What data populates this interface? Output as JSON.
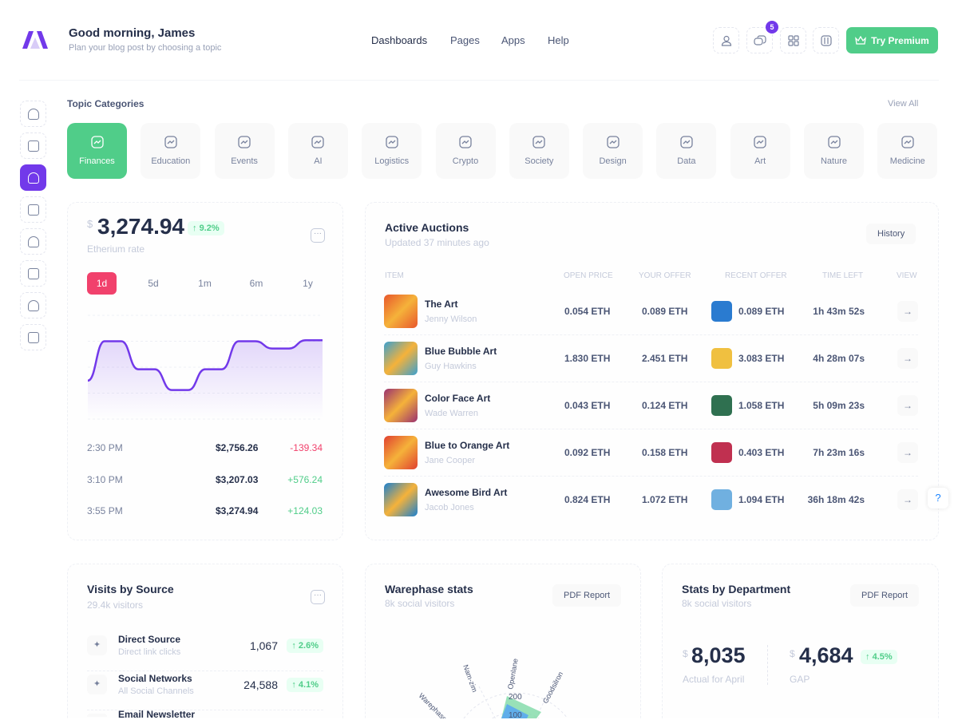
{
  "header": {
    "greeting": "Good morning, James",
    "subtitle": "Plan your blog post by choosing a topic",
    "nav": [
      "Dashboards",
      "Pages",
      "Apps",
      "Help"
    ],
    "notification_count": "5",
    "premium_label": "Try Premium"
  },
  "topics": {
    "title": "Topic Categories",
    "view_all": "View All",
    "items": [
      {
        "label": "Finances",
        "icon": "chart-icon"
      },
      {
        "label": "Education",
        "icon": "cabinet-icon"
      },
      {
        "label": "Events",
        "icon": "calendar-icon"
      },
      {
        "label": "AI",
        "icon": "brain-icon"
      },
      {
        "label": "Logistics",
        "icon": "bag-icon"
      },
      {
        "label": "Crypto",
        "icon": "bitcoin-icon"
      },
      {
        "label": "Society",
        "icon": "people-icon"
      },
      {
        "label": "Design",
        "icon": "pen-tool-icon"
      },
      {
        "label": "Data",
        "icon": "hierarchy-icon"
      },
      {
        "label": "Art",
        "icon": "picture-icon"
      },
      {
        "label": "Nature",
        "icon": "tree-icon"
      },
      {
        "label": "Medicine",
        "icon": "heart-pulse-icon"
      }
    ],
    "active": "Finances"
  },
  "sidebar": [
    "home-icon",
    "cart-icon",
    "paypal-icon",
    "documents-icon",
    "contact-book-icon",
    "faceid-icon",
    "shield-user-icon",
    "alert-icon"
  ],
  "eth": {
    "currency": "$",
    "value": "3,274.94",
    "change": "9.2%",
    "label": "Etherium rate",
    "ranges": [
      "1d",
      "5d",
      "1m",
      "6m",
      "1y"
    ],
    "active_range": "1d",
    "rows": [
      {
        "time": "2:30 PM",
        "price": "$2,756.26",
        "delta": "-139.34"
      },
      {
        "time": "3:10 PM",
        "price": "$3,207.03",
        "delta": "+576.24"
      },
      {
        "time": "3:55 PM",
        "price": "$3,274.94",
        "delta": "+124.03"
      }
    ],
    "colors": {
      "line": "#7239ea",
      "up": "#50cd89",
      "down": "#f1416c"
    }
  },
  "chart_data": {
    "type": "area",
    "values": [
      37,
      75,
      75,
      48,
      48,
      28,
      28,
      48,
      48,
      75,
      75,
      68,
      68,
      76,
      76
    ],
    "ylim": [
      0,
      100
    ],
    "grid": true
  },
  "auctions": {
    "title": "Active Auctions",
    "subtitle": "Updated 37 minutes ago",
    "history": "History",
    "columns": [
      "Item",
      "Open Price",
      "Your Offer",
      "Recent Offer",
      "Time Left",
      "View"
    ],
    "rows": [
      {
        "name": "The Art",
        "artist": "Jenny Wilson",
        "open": "0.054 ETH",
        "offer": "0.089 ETH",
        "recent": "0.089 ETH",
        "time": "1h 43m 52s",
        "thumb": "#e8572c",
        "avatar": "#2a7bd0"
      },
      {
        "name": "Blue Bubble Art",
        "artist": "Guy Hawkins",
        "open": "1.830 ETH",
        "offer": "2.451 ETH",
        "recent": "3.083 ETH",
        "time": "4h 28m 07s",
        "thumb": "#3aa0d0",
        "avatar": "#f0c040"
      },
      {
        "name": "Color Face Art",
        "artist": "Wade Warren",
        "open": "0.043 ETH",
        "offer": "0.124 ETH",
        "recent": "1.058 ETH",
        "time": "5h 09m 23s",
        "thumb": "#9a3070",
        "avatar": "#2f7050"
      },
      {
        "name": "Blue to Orange Art",
        "artist": "Jane Cooper",
        "open": "0.092 ETH",
        "offer": "0.158 ETH",
        "recent": "0.403 ETH",
        "time": "7h 23m 16s",
        "thumb": "#e04030",
        "avatar": "#c03050"
      },
      {
        "name": "Awesome Bird Art",
        "artist": "Jacob Jones",
        "open": "0.824 ETH",
        "offer": "1.072 ETH",
        "recent": "1.094 ETH",
        "time": "36h 18m 42s",
        "thumb": "#1a80d0",
        "avatar": "#70b0e0"
      }
    ]
  },
  "visits": {
    "title": "Visits by Source",
    "subtitle": "29.4k visitors",
    "items": [
      {
        "name": "Direct Source",
        "sub": "Direct link clicks",
        "value": "1,067",
        "change": "2.6%",
        "icon": "rocket-icon"
      },
      {
        "name": "Social Networks",
        "sub": "All Social Channels",
        "value": "24,588",
        "change": "4.1%",
        "icon": "tiktok-icon"
      },
      {
        "name": "Email Newsletter",
        "icon": "sms-icon"
      }
    ]
  },
  "warephase": {
    "title": "Warephase stats",
    "subtitle": "8k social visitors",
    "button": "PDF Report",
    "axes": [
      "Warephase",
      "Nam-zim",
      "Openlane",
      "Goodsilron"
    ],
    "ticks": [
      "200",
      "100"
    ]
  },
  "dept": {
    "title": "Stats by Department",
    "subtitle": "8k social visitors",
    "button": "PDF Report",
    "stats": [
      {
        "currency": "$",
        "value": "8,035",
        "label": "Actual for April"
      },
      {
        "currency": "$",
        "value": "4,684",
        "label": "GAP",
        "change": "4.5%"
      }
    ]
  }
}
